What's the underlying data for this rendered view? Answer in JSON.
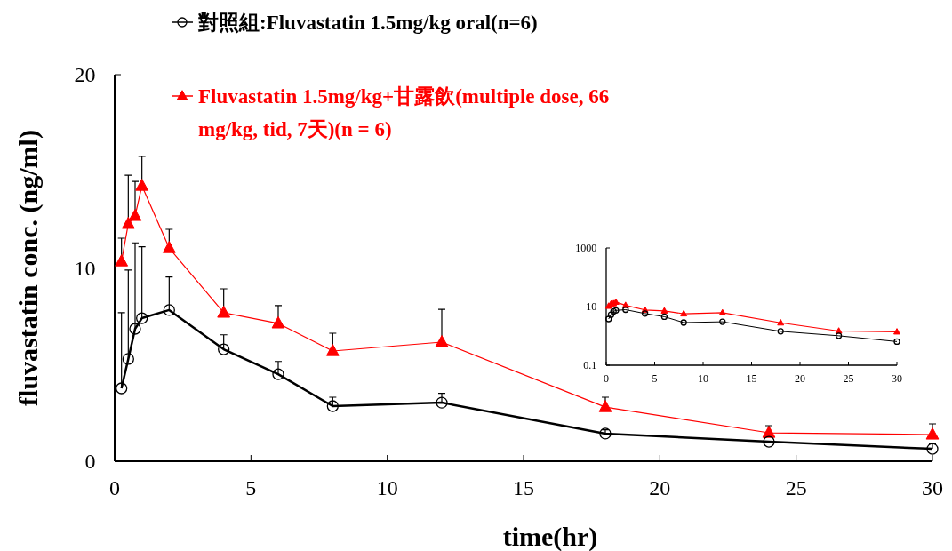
{
  "chart_data": [
    {
      "type": "line",
      "xlabel": "time(hr)",
      "ylabel": "fluvastatin conc. (ng/ml)",
      "xlim": [
        0,
        30
      ],
      "ylim": [
        0,
        20
      ],
      "xticks": [
        0,
        5,
        10,
        15,
        20,
        25,
        30
      ],
      "yticks": [
        0,
        10,
        20
      ],
      "grid": false,
      "legend": "top left",
      "series": [
        {
          "name": "對照組:Fluvastatin 1.5mg/kg oral(n=6)",
          "color": "#000000",
          "marker": "circle",
          "x": [
            0.25,
            0.5,
            0.75,
            1,
            2,
            4,
            6,
            8,
            12,
            18,
            24,
            30
          ],
          "values": [
            3.77,
            5.29,
            6.85,
            7.4,
            7.82,
            5.79,
            4.5,
            2.85,
            3.03,
            1.43,
            1.01,
            0.64
          ],
          "errors": [
            [
              3.77,
              7.68
            ],
            [
              5.29,
              9.89
            ],
            [
              6.85,
              11.3
            ],
            [
              7.4,
              11.1
            ],
            [
              7.82,
              9.53
            ],
            [
              5.79,
              6.54
            ],
            [
              4.5,
              5.16
            ],
            [
              2.85,
              3.31
            ],
            [
              3.03,
              3.51
            ],
            [
              1.43,
              1.63
            ],
            null,
            [
              0.64,
              0.9
            ]
          ]
        },
        {
          "name": "Fluvastatin 1.5mg/kg+甘露飲(multiple dose, 66 mg/kg, tid, 7天)(n = 6)",
          "color": "#ff0000",
          "marker": "triangle",
          "x": [
            0.25,
            0.5,
            0.75,
            1,
            2,
            4,
            6,
            8,
            12,
            18,
            24,
            30
          ],
          "values": [
            10.34,
            12.28,
            12.69,
            14.25,
            11.03,
            7.68,
            7.13,
            5.7,
            6.16,
            2.8,
            1.47,
            1.38
          ],
          "errors": [
            [
              10.34,
              11.54
            ],
            [
              12.28,
              14.8
            ],
            [
              12.69,
              14.48
            ],
            [
              14.25,
              15.77
            ],
            [
              11.03,
              12.0
            ],
            [
              7.68,
              8.92
            ],
            [
              7.13,
              8.05
            ],
            [
              5.7,
              6.62
            ],
            [
              6.16,
              7.86
            ],
            [
              2.8,
              3.31
            ],
            [
              1.47,
              1.84
            ],
            [
              1.38,
              1.93
            ]
          ]
        }
      ]
    },
    {
      "type": "line",
      "log": "y",
      "xlim": [
        0,
        30
      ],
      "ylim": [
        0.1,
        1000
      ],
      "xticks": [
        0,
        5,
        10,
        15,
        20,
        25,
        30
      ],
      "yticks": [
        0.1,
        10,
        1000
      ],
      "grid": false,
      "series": [
        {
          "color": "#000000",
          "marker": "circle",
          "x": [
            0.25,
            0.5,
            0.75,
            1,
            2,
            4,
            6,
            8,
            12,
            18,
            24,
            30
          ],
          "values": [
            3.77,
            5.29,
            6.85,
            7.4,
            7.82,
            5.79,
            4.5,
            2.85,
            3.03,
            1.43,
            1.01,
            0.64
          ]
        },
        {
          "color": "#ff0000",
          "marker": "triangle",
          "x": [
            0.25,
            0.5,
            0.75,
            1,
            2,
            4,
            6,
            8,
            12,
            18,
            24,
            30
          ],
          "values": [
            10.34,
            12.28,
            12.69,
            14.25,
            11.03,
            7.68,
            7.13,
            5.7,
            6.16,
            2.8,
            1.47,
            1.38
          ]
        }
      ]
    }
  ]
}
